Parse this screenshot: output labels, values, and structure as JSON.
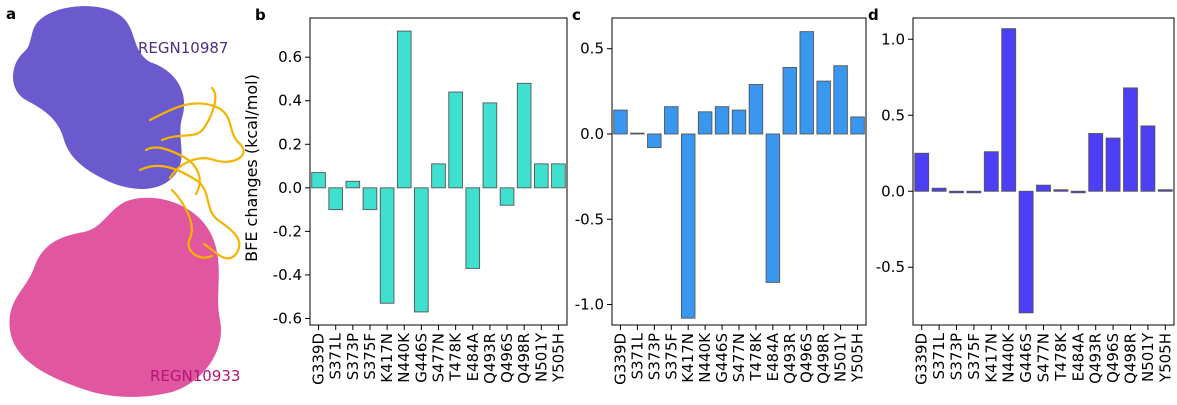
{
  "panel_labels": {
    "a": "a",
    "b": "b",
    "c": "c",
    "d": "d"
  },
  "structure": {
    "label_top": "REGN10987",
    "label_bottom": "REGN10933",
    "top_color": "#6a5acd",
    "bottom_color": "#e0569f",
    "ribbon_color": "#f4b400",
    "label_top_color": "#4b2e83",
    "label_bottom_color": "#b5147a"
  },
  "chart_data": [
    {
      "panel": "b",
      "type": "bar",
      "ylabel": "BFE changes (kcal/mol)",
      "categories": [
        "G339D",
        "S371L",
        "S373P",
        "S375F",
        "K417N",
        "N440K",
        "G446S",
        "S477N",
        "T478K",
        "E484A",
        "Q493R",
        "Q496S",
        "Q498R",
        "N501Y",
        "Y505H"
      ],
      "values": [
        0.07,
        -0.1,
        0.03,
        -0.1,
        -0.53,
        0.72,
        -0.57,
        0.11,
        0.44,
        -0.37,
        0.39,
        -0.08,
        0.48,
        0.11,
        0.11
      ],
      "ylim": [
        -0.63,
        0.78
      ],
      "yticks": [
        -0.6,
        -0.4,
        -0.2,
        0.0,
        0.2,
        0.4,
        0.6
      ],
      "ytick_labels": [
        "-0.6",
        "-0.4",
        "-0.2",
        "0.0",
        "0.2",
        "0.4",
        "0.6"
      ],
      "color": "#40e0d0"
    },
    {
      "panel": "c",
      "type": "bar",
      "ylabel": "",
      "categories": [
        "G339D",
        "S371L",
        "S373P",
        "S375F",
        "K417N",
        "N440K",
        "G446S",
        "S477N",
        "T478K",
        "E484A",
        "Q493R",
        "Q496S",
        "Q498R",
        "N501Y",
        "Y505H"
      ],
      "values": [
        0.14,
        0.005,
        -0.08,
        0.16,
        -1.08,
        0.13,
        0.16,
        0.14,
        0.29,
        -0.87,
        0.39,
        0.6,
        0.31,
        0.4,
        0.1
      ],
      "ylim": [
        -1.12,
        0.68
      ],
      "yticks": [
        -1.0,
        -0.5,
        0.0,
        0.5
      ],
      "ytick_labels": [
        "-1.0",
        "-0.5",
        "0.0",
        "0.5"
      ],
      "color": "#3a97f0"
    },
    {
      "panel": "d",
      "type": "bar",
      "ylabel": "",
      "categories": [
        "G339D",
        "S371L",
        "S373P",
        "S375F",
        "K417N",
        "N440K",
        "G446S",
        "S477N",
        "T478K",
        "E484A",
        "Q493R",
        "Q496S",
        "Q498R",
        "N501Y",
        "Y505H"
      ],
      "values": [
        0.25,
        0.02,
        -0.01,
        -0.01,
        0.26,
        1.07,
        -0.8,
        0.04,
        0.01,
        -0.01,
        0.38,
        0.35,
        0.68,
        0.43,
        0.01
      ],
      "ylim": [
        -0.88,
        1.14
      ],
      "yticks": [
        -0.5,
        0.0,
        0.5,
        1.0
      ],
      "ytick_labels": [
        "-0.5",
        "0.0",
        "0.5",
        "1.0"
      ],
      "color": "#4c3ff5"
    }
  ]
}
